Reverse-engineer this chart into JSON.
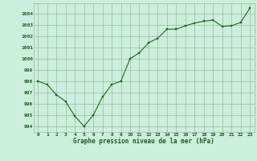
{
  "x": [
    0,
    1,
    2,
    3,
    4,
    5,
    6,
    7,
    8,
    9,
    10,
    11,
    12,
    13,
    14,
    15,
    16,
    17,
    18,
    19,
    20,
    21,
    22,
    23
  ],
  "y": [
    998.0,
    997.7,
    996.8,
    996.2,
    994.9,
    994.0,
    995.0,
    996.6,
    997.7,
    998.0,
    1000.0,
    1000.5,
    1001.4,
    1001.8,
    1002.6,
    1002.6,
    1002.9,
    1003.15,
    1003.3,
    1003.4,
    1002.85,
    1002.9,
    1003.2,
    1004.45
  ],
  "line_color": "#1a6b1a",
  "marker_color": "#1a6b1a",
  "bg_color": "#cceedd",
  "grid_color": "#99bb99",
  "xlabel": "Graphe pression niveau de la mer (hPa)",
  "xlabel_color": "#1a5c1a",
  "tick_label_color": "#1a5c1a",
  "ylim": [
    993.5,
    1004.9
  ],
  "xlim": [
    -0.5,
    23.5
  ],
  "yticks": [
    994,
    995,
    996,
    997,
    998,
    999,
    1000,
    1001,
    1002,
    1003,
    1004
  ],
  "xticks": [
    0,
    1,
    2,
    3,
    4,
    5,
    6,
    7,
    8,
    9,
    10,
    11,
    12,
    13,
    14,
    15,
    16,
    17,
    18,
    19,
    20,
    21,
    22,
    23
  ],
  "xtick_labels": [
    "0",
    "1",
    "2",
    "3",
    "4",
    "5",
    "6",
    "7",
    "8",
    "9",
    "10",
    "11",
    "12",
    "13",
    "14",
    "15",
    "16",
    "17",
    "18",
    "19",
    "20",
    "21",
    "22",
    "23"
  ],
  "figsize": [
    3.2,
    2.0
  ],
  "dpi": 100
}
